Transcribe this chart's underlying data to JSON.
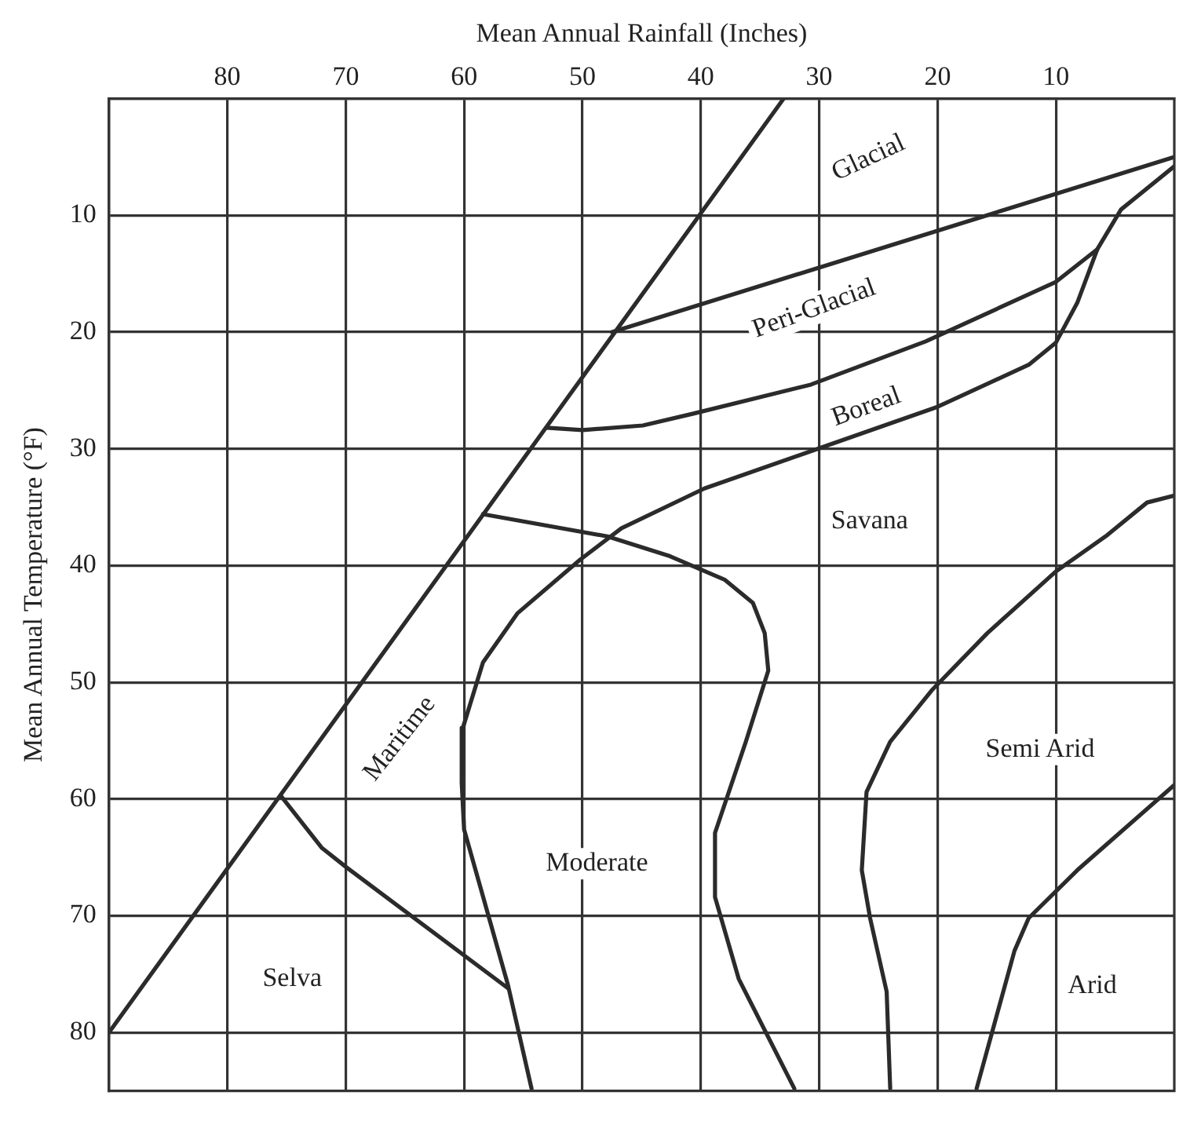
{
  "chart_data": {
    "type": "line",
    "xlabel": "Mean Annual Rainfall (Inches)",
    "ylabel": "Mean Annual Temperature (°F)",
    "xlim": [
      90,
      0
    ],
    "xticks": [
      80,
      70,
      60,
      50,
      40,
      30,
      20,
      10
    ],
    "ylim": [
      85,
      0
    ],
    "yticks": [
      10,
      20,
      30,
      40,
      50,
      60,
      70,
      80
    ],
    "grid": true,
    "series": [
      {
        "color": "#2b2b2b",
        "x": [
          90,
          33
        ],
        "values": [
          80,
          0
        ]
      },
      {
        "color": "#2b2b2b",
        "x": [
          47.5,
          0
        ],
        "values": [
          20,
          5
        ]
      },
      {
        "color": "#2b2b2b",
        "x": [
          53,
          50,
          44.9,
          40.7,
          30.7,
          21,
          10,
          6.5
        ],
        "values": [
          28.2,
          28.4,
          28,
          27,
          24.5,
          20.8,
          15.7,
          12.9
        ]
      },
      {
        "color": "#2b2b2b",
        "x": [
          0,
          4.5,
          6.5,
          8.2,
          10,
          12.3,
          20,
          30.7,
          39.7,
          46.7,
          50.2,
          55.5,
          58.4,
          60.1,
          60.2,
          60,
          56.3,
          54.3
        ],
        "values": [
          5.8,
          9.5,
          12.9,
          17.5,
          20.9,
          22.8,
          26.4,
          30.2,
          33.4,
          36.8,
          39.5,
          44.1,
          48.3,
          53.9,
          58.6,
          62.6,
          75.9,
          84.8
        ]
      },
      {
        "color": "#2b2b2b",
        "x": [
          58.4,
          47.9,
          42.6,
          38,
          35.6,
          34.6,
          34.3,
          36.2,
          38.8,
          38.8,
          36.8,
          32.1
        ],
        "values": [
          35.6,
          37.5,
          39.2,
          41.2,
          43.2,
          45.8,
          49,
          55.1,
          62.9,
          68.4,
          75.4,
          84.8
        ]
      },
      {
        "color": "#2b2b2b",
        "x": [
          0,
          2.3,
          5.8,
          10,
          15.8,
          20.5,
          24,
          26,
          26.4,
          25.7,
          24.3,
          24
        ],
        "values": [
          34,
          34.6,
          37.5,
          40.5,
          45.8,
          50.7,
          55.1,
          59.4,
          66.1,
          70.2,
          76.5,
          84.8
        ]
      },
      {
        "color": "#2b2b2b",
        "x": [
          0,
          8.2,
          12.3,
          13.5,
          16.7
        ],
        "values": [
          58.8,
          66.1,
          70.2,
          73,
          84.8
        ]
      },
      {
        "color": "#2b2b2b",
        "x": [
          75.5,
          72,
          70,
          56.3
        ],
        "values": [
          59.7,
          64.2,
          65.8,
          76.2
        ]
      }
    ],
    "annotations": [
      "Glacial",
      "Peri-Glacial",
      "Boreal",
      "Savana",
      "Maritime",
      "Semi Arid",
      "Moderate",
      "Selva",
      "Arid"
    ]
  }
}
